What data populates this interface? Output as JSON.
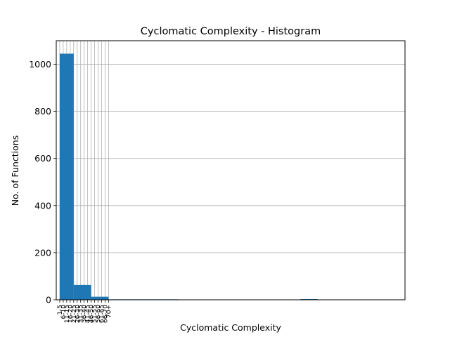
{
  "chart_data": {
    "type": "bar",
    "title": "Cyclomatic Complexity - Histogram",
    "xlabel": "Cyclomatic Complexity",
    "ylabel": "No. of Functions",
    "ylim": [
      0,
      1100
    ],
    "yticks": [
      0,
      200,
      400,
      600,
      800,
      1000
    ],
    "xlim": [
      0,
      100
    ],
    "grid": true,
    "bar_color": "#1f77b4",
    "grid_color": "#b0b0b0",
    "bins": [
      {
        "start": 1,
        "end": 5,
        "value": 1045
      },
      {
        "start": 5,
        "end": 10,
        "value": 63
      },
      {
        "start": 10,
        "end": 15,
        "value": 13
      },
      {
        "start": 15,
        "end": 20,
        "value": 2
      },
      {
        "start": 20,
        "end": 25,
        "value": 2
      },
      {
        "start": 25,
        "end": 30,
        "value": 2
      },
      {
        "start": 30,
        "end": 35,
        "value": 2
      },
      {
        "start": 35,
        "end": 40,
        "value": 1
      },
      {
        "start": 40,
        "end": 45,
        "value": 1
      },
      {
        "start": 45,
        "end": 50,
        "value": 1
      },
      {
        "start": 50,
        "end": 55,
        "value": 0
      },
      {
        "start": 55,
        "end": 60,
        "value": 0
      },
      {
        "start": 60,
        "end": 65,
        "value": 0
      },
      {
        "start": 65,
        "end": 70,
        "value": 0
      },
      {
        "start": 70,
        "end": 75,
        "value": 3
      },
      {
        "start": 75,
        "end": 80,
        "value": 0
      }
    ],
    "xticks": [
      1,
      2,
      3,
      4,
      5,
      6,
      7,
      8,
      9,
      10,
      11,
      12,
      13,
      14,
      15
    ],
    "xtick_labels": [
      "1-5",
      "6-10",
      "11-15",
      "16-20",
      "21-25",
      "26-30",
      "31-35",
      "36-40",
      "41-45",
      "46-50",
      "51-55",
      "56-60",
      "61-65",
      "66-70",
      "70+"
    ]
  }
}
